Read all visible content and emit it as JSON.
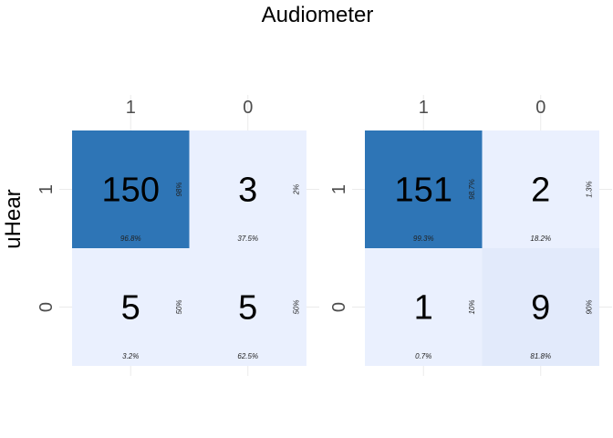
{
  "chart_data": {
    "type": "heatmap",
    "title": "Audiometer",
    "ylabel": "uHear",
    "panels": [
      {
        "col_labels": [
          "1",
          "0"
        ],
        "row_labels": [
          "1",
          "0"
        ],
        "cells": [
          {
            "row": "1",
            "col": "1",
            "count": 150,
            "row_pct": "98%",
            "col_pct": "96.8%",
            "color": "#2e75b6"
          },
          {
            "row": "1",
            "col": "0",
            "count": 3,
            "row_pct": "2%",
            "col_pct": "37.5%",
            "color": "#eaf0fe"
          },
          {
            "row": "0",
            "col": "1",
            "count": 5,
            "row_pct": "50%",
            "col_pct": "3.2%",
            "color": "#eaf0fe"
          },
          {
            "row": "0",
            "col": "0",
            "count": 5,
            "row_pct": "50%",
            "col_pct": "62.5%",
            "color": "#eaf0fe"
          }
        ]
      },
      {
        "col_labels": [
          "1",
          "0"
        ],
        "row_labels": [
          "1",
          "0"
        ],
        "cells": [
          {
            "row": "1",
            "col": "1",
            "count": 151,
            "row_pct": "98.7%",
            "col_pct": "99.3%",
            "color": "#2e75b6"
          },
          {
            "row": "1",
            "col": "0",
            "count": 2,
            "row_pct": "1.3%",
            "col_pct": "18.2%",
            "color": "#eaf0fe"
          },
          {
            "row": "0",
            "col": "1",
            "count": 1,
            "row_pct": "10%",
            "col_pct": "0.7%",
            "color": "#eaf0fe"
          },
          {
            "row": "0",
            "col": "0",
            "count": 9,
            "row_pct": "90%",
            "col_pct": "81.8%",
            "color": "#e2eafb"
          }
        ]
      }
    ],
    "colors": {
      "high": "#2e75b6",
      "low": "#eaf0fe",
      "grid": "#ebebeb"
    },
    "grid": true
  }
}
